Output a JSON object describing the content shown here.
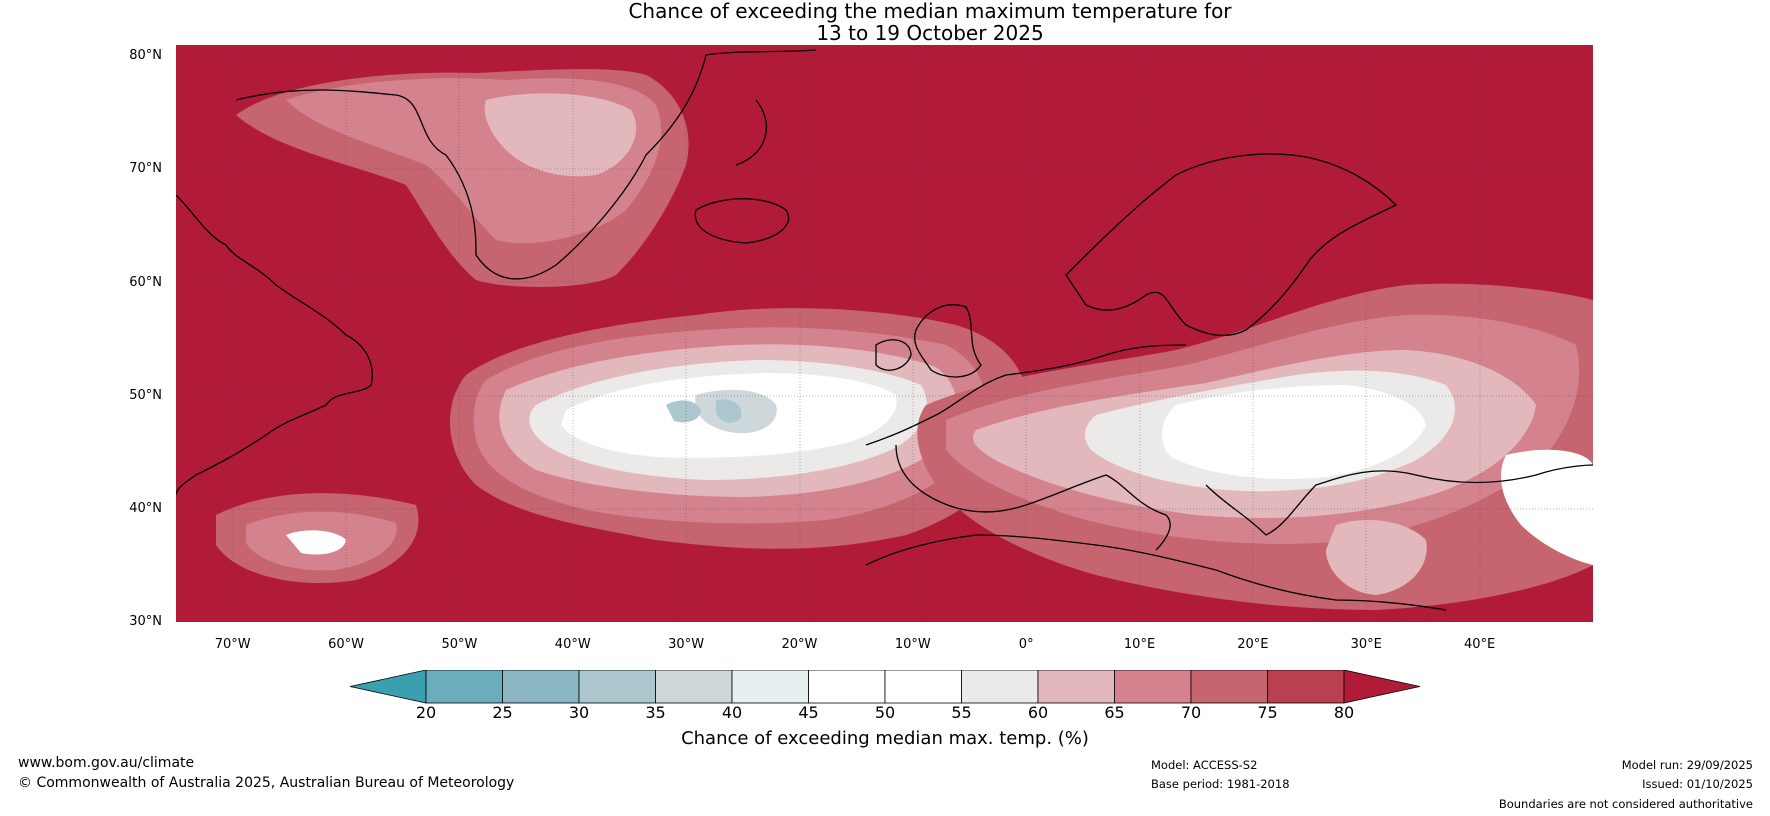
{
  "title": {
    "line1": "Chance of exceeding the median maximum temperature for",
    "line2": "13 to 19 October 2025"
  },
  "map": {
    "latitude_labels": [
      "80°N",
      "70°N",
      "60°N",
      "50°N",
      "40°N",
      "30°N"
    ],
    "latitude_values": [
      80,
      70,
      60,
      50,
      40,
      30
    ],
    "longitude_labels": [
      "70°W",
      "60°W",
      "50°W",
      "40°W",
      "30°W",
      "20°W",
      "10°W",
      "0°",
      "10°E",
      "20°E",
      "30°E",
      "40°E"
    ],
    "longitude_values": [
      -70,
      -60,
      -50,
      -40,
      -30,
      -20,
      -10,
      0,
      10,
      20,
      30,
      40
    ],
    "lat_range": [
      30,
      81
    ],
    "lon_range": [
      -75,
      50
    ],
    "dominant_fill_color": "#b11b38"
  },
  "colorbar": {
    "ticks": [
      "20",
      "25",
      "30",
      "35",
      "40",
      "45",
      "50",
      "55",
      "60",
      "65",
      "70",
      "75",
      "80"
    ],
    "colors": [
      "#3c9fb0",
      "#6aaebe",
      "#8bb6c4",
      "#abc6cd",
      "#ced8da",
      "#e8eff1",
      "#ffffff",
      "#ffffff",
      "#eceae8",
      "#e2b8bd",
      "#d4838e",
      "#c6646f",
      "#b8404f"
    ],
    "under_color": "#3c9fb0",
    "over_color": "#b11b38",
    "label": "Chance of exceeding median max. temp. (%)"
  },
  "footer": {
    "website": "www.bom.gov.au/climate",
    "copyright": "© Commonwealth of Australia 2025, Australian Bureau of Meteorology",
    "model": "Model: ACCESS-S2",
    "base_period": "Base period: 1981-2018",
    "model_run": "Model run: 29/09/2025",
    "issued": "Issued: 01/10/2025",
    "disclaimer": "Boundaries are not considered authoritative"
  }
}
